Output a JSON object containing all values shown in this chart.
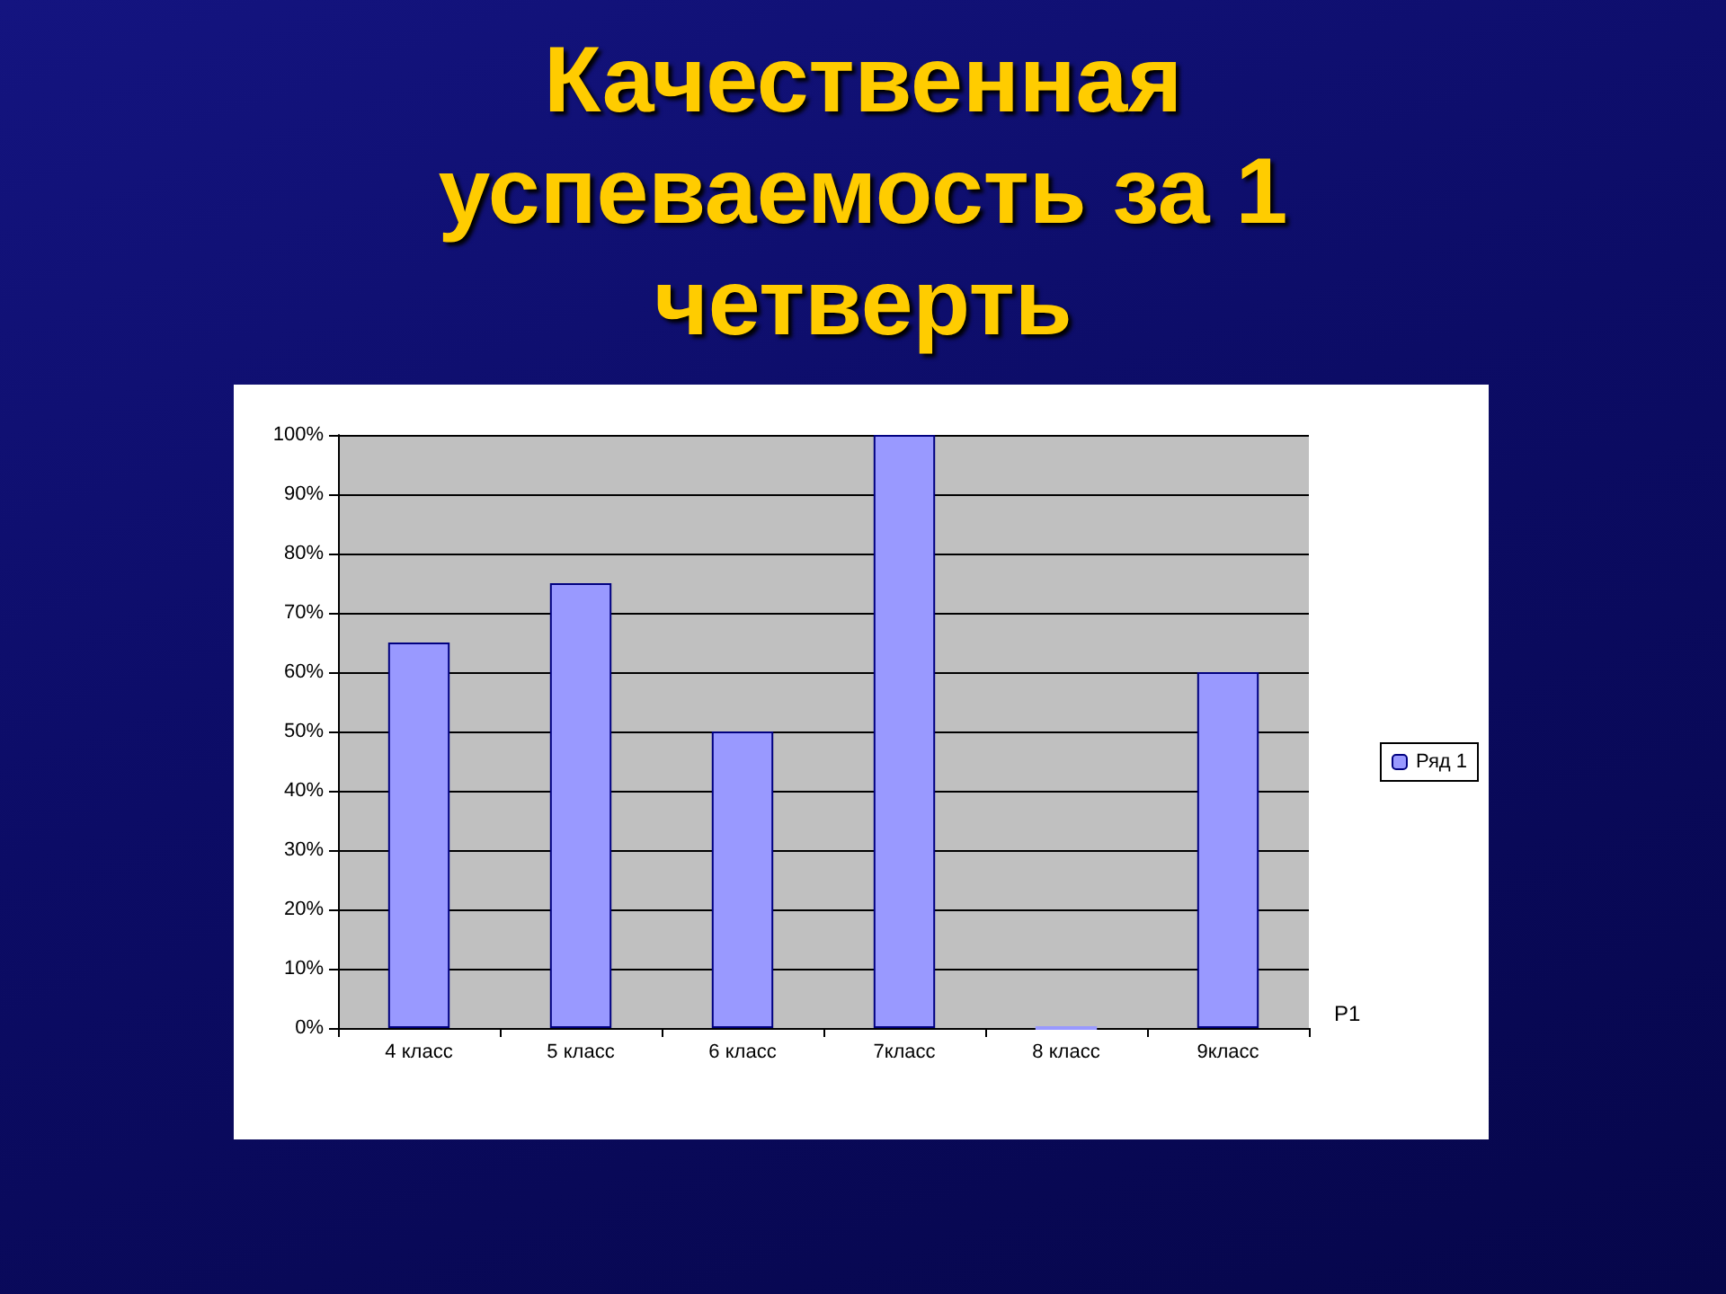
{
  "chart_data": {
    "type": "bar",
    "title": "Качественная успеваемость за 1 четверть",
    "categories": [
      "4 класс",
      "5 класс",
      "6 класс",
      "7класс",
      "8 класс",
      "9класс"
    ],
    "series": [
      {
        "name": "Ряд 1",
        "color": "#9999ff",
        "values": [
          65,
          75,
          50,
          100,
          0,
          60
        ]
      }
    ],
    "ylim": [
      0,
      100
    ],
    "yticks": [
      {
        "value": 0,
        "label": "0%"
      },
      {
        "value": 10,
        "label": "10%"
      },
      {
        "value": 20,
        "label": "20%"
      },
      {
        "value": 30,
        "label": "30%"
      },
      {
        "value": 40,
        "label": "40%"
      },
      {
        "value": 50,
        "label": "50%"
      },
      {
        "value": 60,
        "label": "60%"
      },
      {
        "value": 70,
        "label": "70%"
      },
      {
        "value": 80,
        "label": "80%"
      },
      {
        "value": 90,
        "label": "90%"
      },
      {
        "value": 100,
        "label": "100%"
      }
    ],
    "grid": "y",
    "legend": "right",
    "annotations": [
      "Р1"
    ]
  }
}
